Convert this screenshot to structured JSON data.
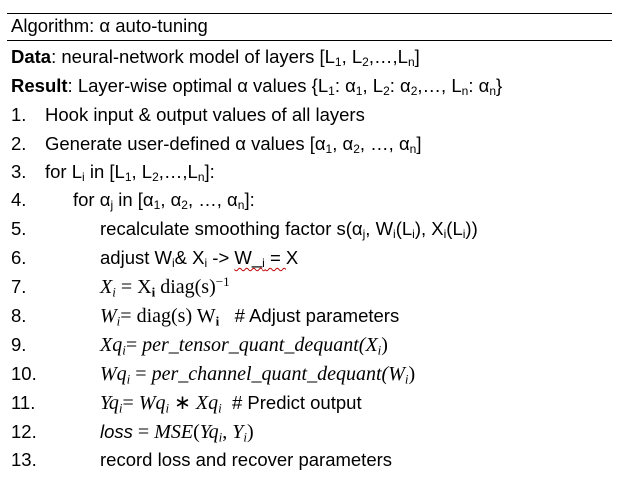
{
  "header": {
    "title": "Algorithm: α auto-tuning"
  },
  "data_line": {
    "label": "Data",
    "text": ": neural-network model of layers [L",
    "s1": "1",
    "c1": ", L",
    "s2": "2",
    "c2": ",…,L",
    "s3": "n",
    "c3": "]"
  },
  "result_line": {
    "label": "Result",
    "text": ": Layer-wise optimal α values {L",
    "s1": "1",
    "c1": ": α",
    "s2": "1",
    "c2": ", L",
    "s3": "2",
    "c3": ": α",
    "s4": "2",
    "c4": ",…, L",
    "s5": "n",
    "c5": ": α",
    "s6": "n",
    "c6": "}"
  },
  "steps": {
    "n1": "1.",
    "t1": "Hook input & output values of all layers",
    "n2": "2.",
    "t2a": "Generate user-defined α values [α",
    "t2s1": "1",
    "t2b": ", α",
    "t2s2": "2",
    "t2c": ", …, α",
    "t2s3": "n",
    "t2d": "]",
    "n3": "3.",
    "t3a": "for L",
    "t3s1": "i",
    "t3b": " in [L",
    "t3s2": "1",
    "t3c": ", L",
    "t3s3": "2",
    "t3d": ",…,L",
    "t3s4": "n",
    "t3e": "]:",
    "n4": "4.",
    "t4a": "for α",
    "t4s1": "j",
    "t4b": " in [α",
    "t4s2": "1",
    "t4c": ", α",
    "t4s3": "2",
    "t4d": ", …, α",
    "t4s4": "n",
    "t4e": "]:",
    "n5": "5.",
    "t5a": "recalculate smoothing factor s(α",
    "t5s1": "j",
    "t5b": ", W",
    "t5s2": "i",
    "t5c": "(L",
    "t5s3": "i",
    "t5d": "), X",
    "t5s4": "i",
    "t5e": "(L",
    "t5s5": "i",
    "t5f": "))",
    "n6": "6.",
    "t6a": "adjust W",
    "t6s1": "i",
    "t6b": "& X",
    "t6s2": "i",
    "t6c": " -> ",
    "t6d": "W_",
    "t6s3": "i",
    "t6e": " = ",
    "t6f": "X",
    "n7": "7.",
    "t7a": "X",
    "t7s1": "i",
    "t7b": " = ",
    "t7c": "X",
    "t7s2": "i",
    "t7d": " diag(s)",
    "t7sup": "−1",
    "n8": "8.",
    "t8a": "W",
    "t8s1": "i",
    "t8b": "= ",
    "t8c": "diag(s) W",
    "t8s2": "i",
    "t8d": "   # Adjust parameters",
    "n9": "9.",
    "t9a": "Xq",
    "t9s1": "i",
    "t9b": "= ",
    "t9c": "per_tensor_quant_dequant",
    "t9d": "(X",
    "t9s2": "i",
    "t9e": ")",
    "n10": "10.",
    "t10a": "Wq",
    "t10s1": "i",
    "t10b": " = ",
    "t10c": "per_channel_quant_dequant",
    "t10d": "(W",
    "t10s2": "i",
    "t10e": ")",
    "n11": "11.",
    "t11a": "Yq",
    "t11s1": "i",
    "t11b": "= ",
    "t11c": "Wq",
    "t11s2": "i",
    "t11d": " ∗ ",
    "t11e": "Xq",
    "t11s3": "i",
    "t11f": "  # Predict output",
    "n12": "12.",
    "t12a": "loss",
    "t12b": " = ",
    "t12c": "MSE",
    "t12d": "(",
    "t12e": "Yq",
    "t12s1": "i",
    "t12f": ", ",
    "t12g": "Y",
    "t12s2": "i",
    "t12h": ")",
    "n13": "13.",
    "t13": "record loss and recover parameters"
  }
}
